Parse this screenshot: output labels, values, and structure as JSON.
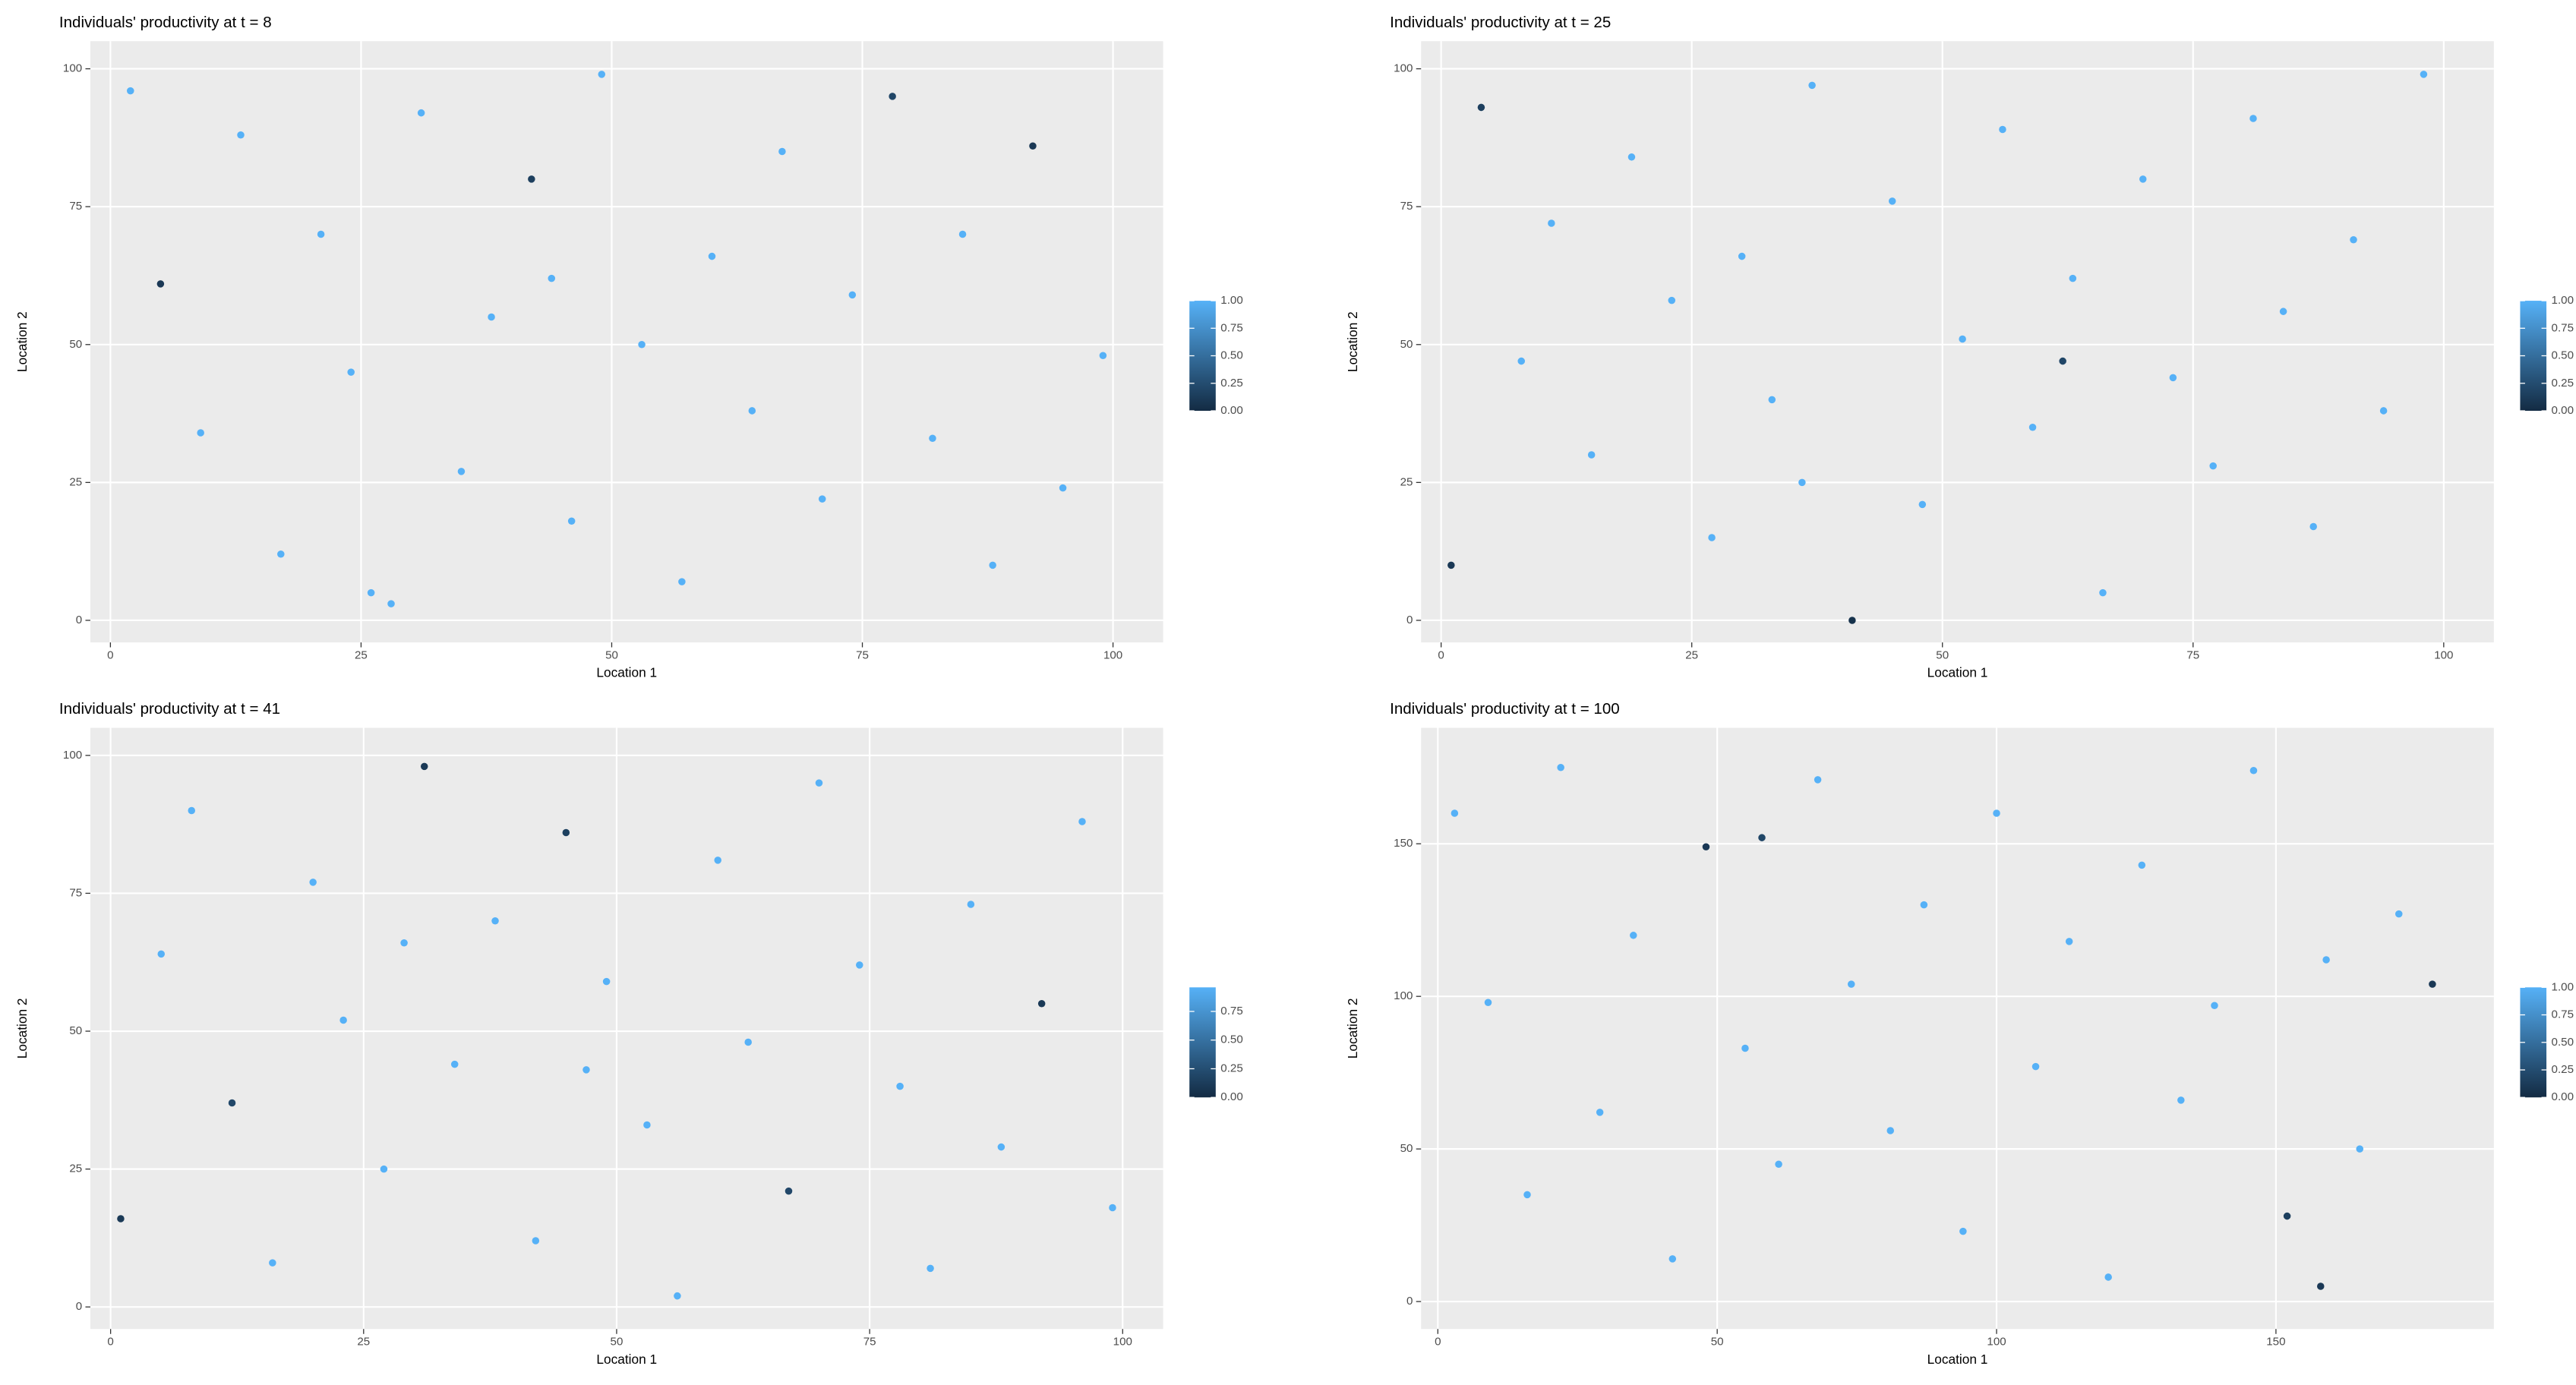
{
  "chart_data": [
    {
      "type": "scatter",
      "title": "Individuals' productivity at t = 8",
      "x_label": "Location 1",
      "y_label": "Location 2",
      "x": [
        2,
        5,
        9,
        13,
        17,
        21,
        24,
        28,
        31,
        35,
        38,
        42,
        46,
        49,
        53,
        57,
        60,
        64,
        67,
        71,
        74,
        78,
        82,
        85,
        88,
        92,
        95,
        99,
        44,
        26
      ],
      "y": [
        96,
        61,
        34,
        88,
        12,
        70,
        45,
        3,
        92,
        27,
        55,
        80,
        18,
        99,
        50,
        7,
        66,
        38,
        85,
        22,
        59,
        95,
        33,
        70,
        10,
        86,
        24,
        48,
        62,
        5
      ],
      "values": [
        1,
        0.1,
        1,
        1,
        1,
        1,
        1,
        1,
        1,
        1,
        1,
        0.15,
        1,
        1,
        1,
        1,
        1,
        1,
        1,
        1,
        1,
        0.2,
        1,
        1,
        1,
        0.1,
        1,
        1,
        1,
        1
      ],
      "xlim": [
        -2,
        105
      ],
      "ylim": [
        -4,
        105
      ],
      "xticks": [
        0,
        25,
        50,
        75,
        100
      ],
      "yticks": [
        0,
        25,
        50,
        75,
        100
      ],
      "colorbar": {
        "lim": [
          0,
          1
        ],
        "low": "#132B43",
        "high": "#56B1F7",
        "ticks": [
          {
            "value": 0,
            "label": "0.00"
          },
          {
            "value": 0.25,
            "label": "0.25"
          },
          {
            "value": 0.5,
            "label": "0.50"
          },
          {
            "value": 0.75,
            "label": "0.75"
          },
          {
            "value": 1,
            "label": "1.00"
          }
        ]
      }
    },
    {
      "type": "scatter",
      "title": "Individuals' productivity at t = 25",
      "x_label": "Location 1",
      "y_label": "Location 2",
      "x": [
        1,
        4,
        8,
        11,
        15,
        19,
        23,
        27,
        30,
        33,
        37,
        41,
        45,
        48,
        52,
        56,
        59,
        63,
        66,
        70,
        73,
        77,
        81,
        84,
        87,
        91,
        94,
        98,
        36,
        62
      ],
      "y": [
        10,
        93,
        47,
        72,
        30,
        84,
        58,
        15,
        66,
        40,
        97,
        0,
        76,
        21,
        51,
        89,
        35,
        62,
        5,
        80,
        44,
        28,
        91,
        56,
        17,
        69,
        38,
        99,
        25,
        47
      ],
      "values": [
        0.1,
        0.15,
        1,
        1,
        1,
        1,
        1,
        1,
        1,
        1,
        1,
        0.05,
        1,
        1,
        1,
        1,
        1,
        1,
        1,
        1,
        1,
        1,
        1,
        1,
        1,
        1,
        1,
        1,
        1,
        0.2
      ],
      "xlim": [
        -2,
        105
      ],
      "ylim": [
        -4,
        105
      ],
      "xticks": [
        0,
        25,
        50,
        75,
        100
      ],
      "yticks": [
        0,
        25,
        50,
        75,
        100
      ],
      "colorbar": {
        "lim": [
          0,
          1
        ],
        "low": "#132B43",
        "high": "#56B1F7",
        "ticks": [
          {
            "value": 0,
            "label": "0.00"
          },
          {
            "value": 0.25,
            "label": "0.25"
          },
          {
            "value": 0.5,
            "label": "0.50"
          },
          {
            "value": 0.75,
            "label": "0.75"
          },
          {
            "value": 1,
            "label": "1.00"
          }
        ]
      }
    },
    {
      "type": "scatter",
      "title": "Individuals' productivity at t = 41",
      "x_label": "Location 1",
      "y_label": "Location 2",
      "x": [
        1,
        5,
        8,
        12,
        16,
        20,
        23,
        27,
        31,
        34,
        38,
        42,
        45,
        49,
        53,
        56,
        60,
        63,
        67,
        70,
        74,
        78,
        81,
        85,
        88,
        92,
        96,
        99,
        29,
        47
      ],
      "y": [
        16,
        64,
        90,
        37,
        8,
        77,
        52,
        25,
        98,
        44,
        70,
        12,
        86,
        59,
        33,
        2,
        81,
        48,
        21,
        95,
        62,
        40,
        7,
        73,
        29,
        55,
        88,
        18,
        66,
        43
      ],
      "values": [
        0.1,
        0.96,
        0.96,
        0.2,
        0.96,
        0.96,
        0.96,
        0.96,
        0.1,
        0.96,
        0.96,
        0.96,
        0.15,
        0.96,
        0.96,
        0.96,
        0.96,
        0.96,
        0.2,
        0.96,
        0.96,
        0.96,
        0.96,
        0.96,
        0.96,
        0.1,
        0.96,
        0.96,
        0.96,
        0.96
      ],
      "xlim": [
        -2,
        104
      ],
      "ylim": [
        -4,
        105
      ],
      "xticks": [
        0,
        25,
        50,
        75,
        100
      ],
      "yticks": [
        0,
        25,
        50,
        75,
        100
      ],
      "colorbar": {
        "lim": [
          0,
          0.96
        ],
        "low": "#132B43",
        "high": "#56B1F7",
        "ticks": [
          {
            "value": 0,
            "label": "0.00"
          },
          {
            "value": 0.25,
            "label": "0.25"
          },
          {
            "value": 0.5,
            "label": "0.50"
          },
          {
            "value": 0.75,
            "label": "0.75"
          }
        ]
      }
    },
    {
      "type": "scatter",
      "title": "Individuals' productivity at t = 100",
      "x_label": "Location 1",
      "y_label": "Location 2",
      "x": [
        3,
        9,
        16,
        22,
        29,
        35,
        42,
        48,
        55,
        61,
        68,
        74,
        81,
        87,
        94,
        100,
        107,
        113,
        120,
        126,
        133,
        139,
        146,
        152,
        159,
        165,
        172,
        178,
        58,
        158
      ],
      "y": [
        160,
        98,
        35,
        175,
        62,
        120,
        14,
        149,
        83,
        45,
        171,
        104,
        56,
        130,
        23,
        160,
        77,
        118,
        8,
        143,
        66,
        97,
        174,
        28,
        112,
        50,
        127,
        104,
        152,
        5
      ],
      "values": [
        1,
        1,
        1,
        1,
        1,
        1,
        1,
        0.1,
        1,
        1,
        1,
        1,
        1,
        1,
        1,
        1,
        1,
        1,
        1,
        1,
        1,
        1,
        1,
        0.15,
        1,
        1,
        1,
        0.1,
        0.2,
        0.1
      ],
      "xlim": [
        -3,
        189
      ],
      "ylim": [
        -9,
        188
      ],
      "xticks": [
        0,
        50,
        100,
        150
      ],
      "yticks": [
        0,
        50,
        100,
        150
      ],
      "colorbar": {
        "lim": [
          0,
          1
        ],
        "low": "#132B43",
        "high": "#56B1F7",
        "ticks": [
          {
            "value": 0,
            "label": "0.00"
          },
          {
            "value": 0.25,
            "label": "0.25"
          },
          {
            "value": 0.5,
            "label": "0.50"
          },
          {
            "value": 0.75,
            "label": "0.75"
          },
          {
            "value": 1,
            "label": "1.00"
          }
        ]
      }
    }
  ]
}
